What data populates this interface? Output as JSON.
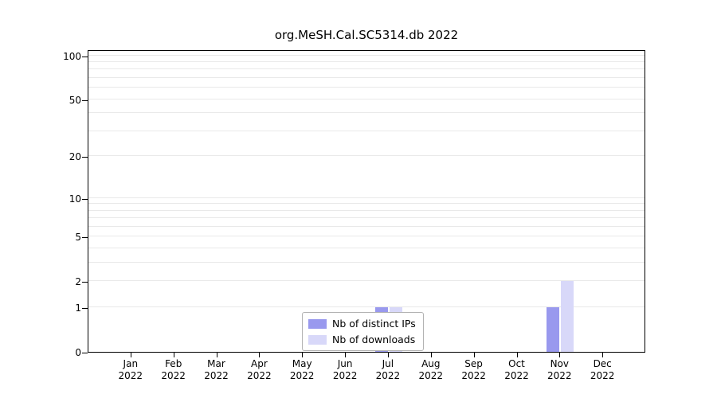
{
  "title": "org.MeSH.Cal.SC5314.db 2022",
  "chart_data": {
    "type": "bar",
    "title": "org.MeSH.Cal.SC5314.db 2022",
    "categories": [
      "Jan",
      "Feb",
      "Mar",
      "Apr",
      "May",
      "Jun",
      "Jul",
      "Aug",
      "Sep",
      "Oct",
      "Nov",
      "Dec"
    ],
    "category_year": "2022",
    "series": [
      {
        "name": "Nb of distinct IPs",
        "color": "#9999ee",
        "values": [
          0,
          0,
          0,
          0,
          0,
          0,
          1,
          0,
          0,
          0,
          1,
          0
        ]
      },
      {
        "name": "Nb of downloads",
        "color": "#d8d8f9",
        "values": [
          0,
          0,
          0,
          0,
          0,
          0,
          1,
          0,
          0,
          0,
          2,
          0
        ]
      }
    ],
    "yscale": "log10(1+y)",
    "ymax": 110,
    "yticks": [
      100,
      50,
      20,
      10,
      5,
      2,
      1,
      0
    ],
    "grid_values": [
      1,
      2,
      3,
      4,
      5,
      6,
      7,
      8,
      9,
      10,
      20,
      30,
      40,
      50,
      60,
      70,
      80,
      90,
      100
    ],
    "grid": true,
    "legend": {
      "position": "inside-bottom-center",
      "entries": [
        "Nb of distinct IPs",
        "Nb of downloads"
      ]
    }
  }
}
